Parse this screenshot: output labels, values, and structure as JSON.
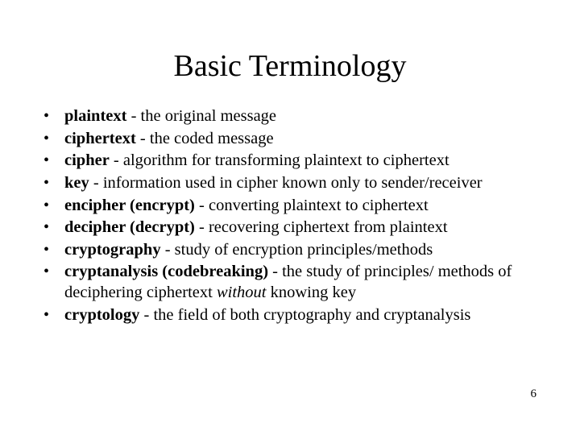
{
  "title": "Basic Terminology",
  "page_number": "6",
  "colors": {
    "background": "#ffffff",
    "text": "#000000"
  },
  "typography": {
    "family": "Times New Roman",
    "title_fontsize": 38,
    "body_fontsize": 20.5
  },
  "bullets": [
    {
      "term": "plaintext",
      "sep": " - ",
      "def1": "the original message",
      "em": "",
      "def2": ""
    },
    {
      "term": "ciphertext",
      "sep": " - ",
      "def1": "the coded message",
      "em": "",
      "def2": ""
    },
    {
      "term": "cipher",
      "sep": " - ",
      "def1": "algorithm for transforming plaintext to ciphertext",
      "em": "",
      "def2": ""
    },
    {
      "term": "key",
      "sep": " - ",
      "def1": "information used in cipher known only to sender/receiver",
      "em": "",
      "def2": ""
    },
    {
      "term": "encipher (encrypt)",
      "sep": " - ",
      "def1": "converting plaintext to ciphertext",
      "em": "",
      "def2": ""
    },
    {
      "term": "decipher (decrypt)",
      "sep": " - ",
      "def1": "recovering ciphertext from plaintext",
      "em": "",
      "def2": ""
    },
    {
      "term": "cryptography",
      "sep": " - ",
      "def1": "study of encryption principles/methods",
      "em": "",
      "def2": ""
    },
    {
      "term": "cryptanalysis (codebreaking)",
      "sep": " - ",
      "def1": "the study of principles/ methods of deciphering ciphertext ",
      "em": "without",
      "def2": " knowing key"
    },
    {
      "term": "cryptology",
      "sep": " - ",
      "def1": "the field of both cryptography and cryptanalysis",
      "em": "",
      "def2": ""
    }
  ]
}
